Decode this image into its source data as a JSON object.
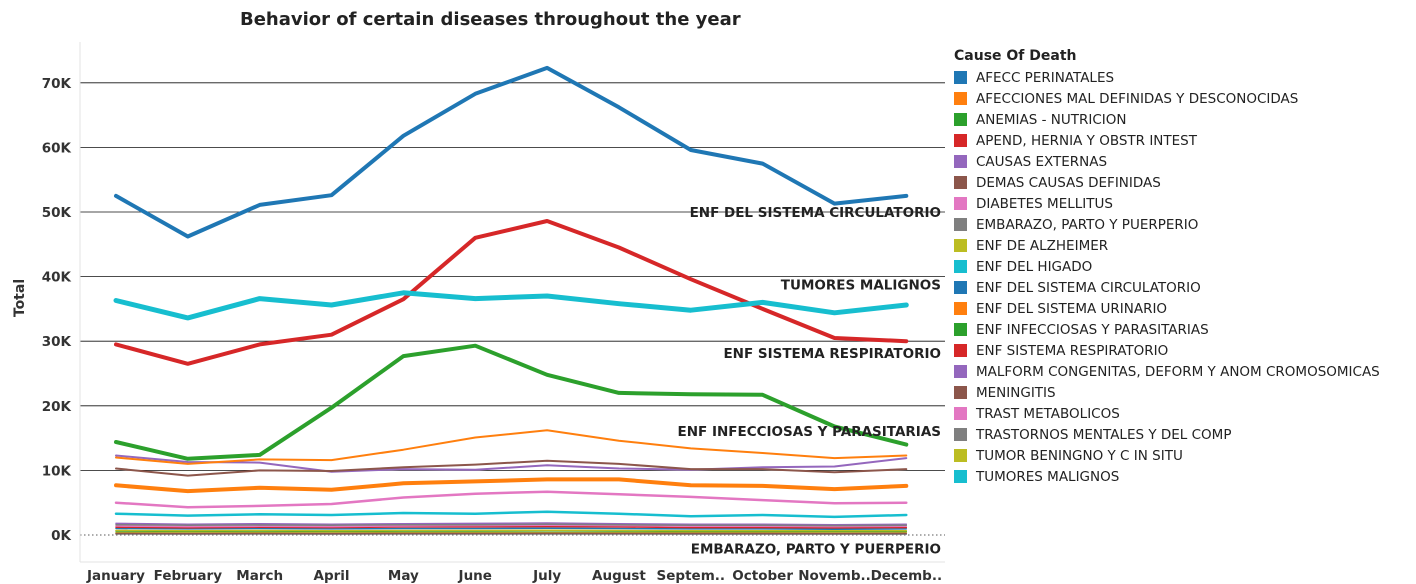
{
  "chart_data": {
    "type": "line",
    "title": "Behavior of certain diseases throughout the year",
    "xlabel": "",
    "ylabel": "Total",
    "ylim": [
      0,
      76000
    ],
    "yticks": [
      0,
      10000,
      20000,
      30000,
      40000,
      50000,
      60000,
      70000
    ],
    "ytick_labels": [
      "0K",
      "10K",
      "20K",
      "30K",
      "40K",
      "50K",
      "60K",
      "70K"
    ],
    "grid": true,
    "categories": [
      "January",
      "February",
      "March",
      "April",
      "May",
      "June",
      "July",
      "August",
      "Septem..",
      "October",
      "Novemb..",
      "Decemb.."
    ],
    "legend": {
      "title": "Cause Of Death",
      "position": "right"
    },
    "series": [
      {
        "name": "AFECC  PERINATALES",
        "color": "#1f77b4",
        "width": 1.5,
        "values": [
          1000,
          950,
          1000,
          950,
          1000,
          1000,
          1050,
          1000,
          950,
          950,
          900,
          950
        ]
      },
      {
        "name": "AFECCIONES MAL DEFINIDAS Y DESCONOCIDAS",
        "color": "#ff7f0e",
        "width": 4,
        "values": [
          7700,
          6800,
          7300,
          7000,
          8000,
          8300,
          8600,
          8600,
          7700,
          7600,
          7100,
          7600
        ]
      },
      {
        "name": "ANEMIAS - NUTRICION",
        "color": "#2ca02c",
        "width": 1.5,
        "values": [
          600,
          550,
          600,
          550,
          600,
          600,
          650,
          600,
          550,
          550,
          550,
          550
        ]
      },
      {
        "name": "APEND, HERNIA Y OBSTR INTEST",
        "color": "#d62728",
        "width": 1.5,
        "values": [
          1200,
          1100,
          1200,
          1150,
          1250,
          1250,
          1300,
          1250,
          1150,
          1150,
          1100,
          1150
        ]
      },
      {
        "name": "CAUSAS EXTERNAS",
        "color": "#9467bd",
        "width": 2,
        "values": [
          12300,
          11300,
          11200,
          9800,
          10200,
          10100,
          10800,
          10300,
          10100,
          10500,
          10600,
          11900
        ]
      },
      {
        "name": "DEMAS CAUSAS DEFINIDAS",
        "color": "#8c564b",
        "width": 2,
        "values": [
          10300,
          9200,
          10000,
          9900,
          10500,
          10900,
          11500,
          11000,
          10200,
          10200,
          9700,
          10200
        ]
      },
      {
        "name": "DIABETES MELLITUS",
        "color": "#e377c2",
        "width": 2.5,
        "values": [
          5000,
          4300,
          4500,
          4800,
          5800,
          6400,
          6700,
          6300,
          5900,
          5400,
          4900,
          5000
        ]
      },
      {
        "name": "EMBARAZO, PARTO Y PUERPERIO",
        "color": "#7f7f7f",
        "width": 1.5,
        "values": [
          150,
          140,
          150,
          140,
          150,
          150,
          160,
          150,
          140,
          140,
          140,
          140
        ]
      },
      {
        "name": "ENF DE ALZHEIMER",
        "color": "#bcbd22",
        "width": 1.5,
        "values": [
          350,
          330,
          340,
          330,
          350,
          360,
          370,
          360,
          340,
          340,
          330,
          340
        ]
      },
      {
        "name": "ENF DEL HIGADO",
        "color": "#17becf",
        "width": 2.5,
        "values": [
          3300,
          3000,
          3200,
          3100,
          3400,
          3300,
          3600,
          3300,
          2900,
          3100,
          2800,
          3100
        ]
      },
      {
        "name": "ENF DEL SISTEMA CIRCULATORIO",
        "color": "#1f77b4",
        "width": 4,
        "values": [
          52500,
          46200,
          51100,
          52600,
          61800,
          68300,
          72300,
          66200,
          59600,
          57500,
          51300,
          52500
        ]
      },
      {
        "name": "ENF DEL SISTEMA URINARIO",
        "color": "#ff7f0e",
        "width": 2,
        "values": [
          12000,
          11000,
          11700,
          11600,
          13200,
          15100,
          16200,
          14600,
          13400,
          12700,
          11900,
          12300
        ]
      },
      {
        "name": "ENF INFECCIOSAS Y PARASITARIAS",
        "color": "#2ca02c",
        "width": 4,
        "values": [
          14400,
          11800,
          12400,
          19700,
          27700,
          29300,
          24800,
          22000,
          21800,
          21700,
          16800,
          14000
        ]
      },
      {
        "name": "ENF SISTEMA RESPIRATORIO",
        "color": "#d62728",
        "width": 4,
        "values": [
          29500,
          26500,
          29500,
          31000,
          36500,
          46000,
          48600,
          44500,
          39600,
          35000,
          30500,
          30000
        ]
      },
      {
        "name": "MALFORM  CONGENITAS, DEFORM  Y ANOM  CROMOSOMICAS",
        "color": "#9467bd",
        "width": 1.5,
        "values": [
          1800,
          1650,
          1750,
          1650,
          1750,
          1800,
          1850,
          1750,
          1650,
          1650,
          1600,
          1650
        ]
      },
      {
        "name": "MENINGITIS",
        "color": "#8c564b",
        "width": 1.5,
        "values": [
          250,
          230,
          240,
          230,
          250,
          250,
          260,
          250,
          240,
          240,
          230,
          240
        ]
      },
      {
        "name": "TRAST METABOLICOS",
        "color": "#e377c2",
        "width": 1.5,
        "values": [
          1400,
          1300,
          1350,
          1300,
          1400,
          1450,
          1500,
          1450,
          1350,
          1350,
          1300,
          1350
        ]
      },
      {
        "name": "TRASTORNOS MENTALES Y DEL COMP",
        "color": "#7f7f7f",
        "width": 1.5,
        "values": [
          1600,
          1500,
          1550,
          1500,
          1600,
          1600,
          1650,
          1600,
          1500,
          1500,
          1450,
          1500
        ]
      },
      {
        "name": "TUMOR BENINGNO Y C IN SITU",
        "color": "#bcbd22",
        "width": 1.5,
        "values": [
          700,
          650,
          700,
          650,
          700,
          700,
          750,
          700,
          650,
          650,
          650,
          650
        ]
      },
      {
        "name": "TUMORES MALIGNOS",
        "color": "#17becf",
        "width": 5,
        "values": [
          36300,
          33600,
          36600,
          35600,
          37500,
          36600,
          37000,
          35800,
          34800,
          36000,
          34400,
          35600
        ]
      }
    ],
    "annotations": [
      {
        "text": "ENF DEL SISTEMA CIRCULATORIO",
        "value": 50000
      },
      {
        "text": "TUMORES MALIGNOS",
        "value": 38800
      },
      {
        "text": "ENF SISTEMA RESPIRATORIO",
        "value": 28200
      },
      {
        "text": "ENF INFECCIOSAS Y PARASITARIAS",
        "value": 16100
      },
      {
        "text": "EMBARAZO, PARTO Y PUERPERIO",
        "value": -2100
      }
    ]
  }
}
